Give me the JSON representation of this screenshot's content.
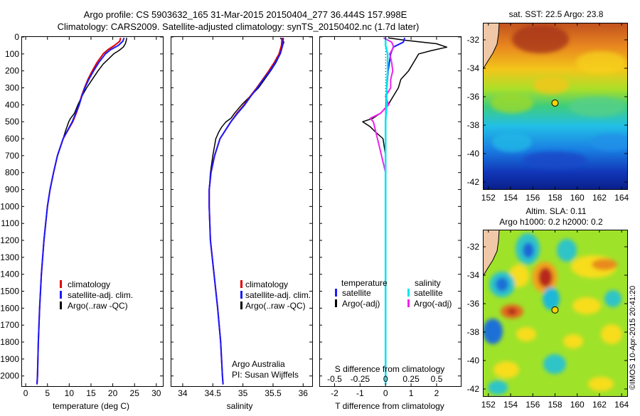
{
  "header": {
    "line1": "Argo profile: CS 5903632_165 31-Mar-2015 20150404_277 36.444S 157.998E",
    "line2": "Climatology: CARS2009. Satellite-adjusted climatology: synTS_20150402.nc (1.7d later)"
  },
  "footer": {
    "credit_line1": "Argo Australia",
    "credit_line2": "PI: Susan Wijffels",
    "watermark": "©IMOS 10-Apr-2015 20:41:20"
  },
  "colors": {
    "climatology": "#e00000",
    "satellite": "#1a1aff",
    "argo": "#000000",
    "satellite_s": "#00e5ee",
    "argo_s": "#ee22ee"
  },
  "depth_axis": {
    "ticks": [
      0,
      100,
      200,
      300,
      400,
      500,
      600,
      700,
      800,
      900,
      1000,
      1100,
      1200,
      1300,
      1400,
      1500,
      1600,
      1700,
      1800,
      1900,
      2000
    ],
    "ylim": [
      2060,
      0
    ]
  },
  "chart_data": [
    {
      "id": "temperature",
      "type": "line",
      "xlabel": "temperature (deg C)",
      "xlim": [
        -1,
        31.5
      ],
      "xticks": [
        0,
        5,
        10,
        15,
        20,
        25,
        30
      ],
      "xtick_labels": [
        "0",
        "5",
        "10",
        "15",
        "20",
        "25",
        "30"
      ],
      "legend": [
        "climatology",
        "satellite-adj. clim.",
        "Argo(..raw -QC)"
      ],
      "legend_placement": "lower-right",
      "series": [
        {
          "name": "climatology",
          "key": "climatology",
          "depth": [
            5,
            25,
            50,
            75,
            100,
            150,
            200,
            250,
            300,
            350,
            400,
            450,
            500,
            600,
            700,
            800,
            900,
            1000,
            1200,
            1400,
            1600,
            1800,
            2000,
            2050
          ],
          "values": [
            21.8,
            21.6,
            20.4,
            18.9,
            17.8,
            16.4,
            15.3,
            14.3,
            13.5,
            12.8,
            12.3,
            11.6,
            10.8,
            8.6,
            7.3,
            6.4,
            5.6,
            5.0,
            4.2,
            3.6,
            3.2,
            2.9,
            2.7,
            2.6
          ]
        },
        {
          "name": "satellite-adj. clim.",
          "key": "satellite",
          "depth": [
            5,
            25,
            50,
            75,
            100,
            150,
            200,
            250,
            300,
            350,
            400,
            450,
            500,
            600,
            700,
            800,
            900,
            1000,
            1200,
            1400,
            1600,
            1800,
            2000,
            2050
          ],
          "values": [
            22.6,
            22.3,
            21.3,
            19.5,
            18.3,
            16.8,
            15.6,
            14.5,
            13.6,
            12.9,
            12.3,
            11.5,
            10.7,
            8.6,
            7.3,
            6.4,
            5.6,
            5.0,
            4.2,
            3.6,
            3.2,
            2.9,
            2.7,
            2.6
          ]
        },
        {
          "name": "Argo(..raw -QC)",
          "key": "argo",
          "depth": [
            5,
            20,
            40,
            60,
            80,
            100,
            130,
            160,
            200,
            250,
            300,
            350,
            400,
            450,
            480,
            500,
            550,
            600,
            700,
            800,
            900,
            1000,
            1200,
            1400,
            1600,
            1800,
            2000,
            2050
          ],
          "values": [
            23.2,
            23.1,
            22.9,
            22.4,
            21.4,
            20.2,
            19.0,
            17.8,
            16.6,
            15.3,
            14.0,
            12.9,
            12.0,
            11.2,
            10.3,
            9.9,
            9.2,
            8.6,
            7.3,
            6.4,
            5.6,
            5.0,
            4.2,
            3.6,
            3.2,
            2.9,
            2.7,
            2.6
          ]
        }
      ]
    },
    {
      "id": "salinity",
      "type": "line",
      "xlabel": "salinity",
      "xlim": [
        33.8,
        36.15
      ],
      "xticks": [
        34,
        34.5,
        35,
        35.5,
        36
      ],
      "xtick_labels": [
        "34",
        "34.5",
        "35",
        "35.5",
        "36"
      ],
      "legend": [
        "climatology",
        "satellite-adj. clim.",
        "Argo(..raw -QC)"
      ],
      "legend_placement": "upper-right",
      "series": [
        {
          "name": "climatology",
          "key": "climatology",
          "depth": [
            5,
            50,
            100,
            150,
            200,
            250,
            300,
            350,
            400,
            450,
            500,
            600,
            700,
            800,
            900,
            1000,
            1200,
            1400,
            1600,
            1800,
            2000,
            2050
          ],
          "values": [
            35.65,
            35.64,
            35.6,
            35.52,
            35.43,
            35.33,
            35.23,
            35.12,
            35.02,
            34.9,
            34.8,
            34.62,
            34.53,
            34.47,
            34.44,
            34.44,
            34.46,
            34.52,
            34.58,
            34.63,
            34.66,
            34.67
          ]
        },
        {
          "name": "satellite-adj. clim.",
          "key": "satellite",
          "depth": [
            5,
            50,
            100,
            150,
            200,
            250,
            300,
            350,
            400,
            450,
            500,
            600,
            700,
            800,
            900,
            1000,
            1200,
            1400,
            1600,
            1800,
            2000,
            2050
          ],
          "values": [
            35.67,
            35.66,
            35.62,
            35.54,
            35.45,
            35.34,
            35.24,
            35.13,
            35.03,
            34.91,
            34.8,
            34.62,
            34.53,
            34.47,
            34.44,
            34.44,
            34.46,
            34.52,
            34.58,
            34.63,
            34.66,
            34.67
          ]
        },
        {
          "name": "Argo(..raw -QC)",
          "key": "argo",
          "depth": [
            5,
            30,
            60,
            100,
            150,
            200,
            250,
            300,
            350,
            400,
            450,
            480,
            500,
            530,
            560,
            600,
            700,
            800,
            900,
            1000,
            1200,
            1400,
            1600,
            1800,
            2000,
            2050
          ],
          "values": [
            35.62,
            35.68,
            35.65,
            35.62,
            35.55,
            35.46,
            35.36,
            35.26,
            35.12,
            34.98,
            34.86,
            34.8,
            34.72,
            34.65,
            34.6,
            34.55,
            34.5,
            34.46,
            34.44,
            34.44,
            34.46,
            34.52,
            34.58,
            34.63,
            34.66,
            34.67
          ]
        }
      ]
    },
    {
      "id": "difference",
      "type": "line",
      "xlabel": "T difference from climatology",
      "top_label": "S difference from climatology",
      "xlim": [
        -2.6,
        2.95
      ],
      "xticks": [
        -2,
        -1,
        0,
        1,
        2
      ],
      "xtick_labels": [
        "-2",
        "-1",
        "0",
        "1",
        "2"
      ],
      "s_ticks": [
        -0.5,
        -0.25,
        0,
        0.25,
        0.5
      ],
      "s_tick_labels": [
        "-0.5",
        "-0.25",
        "0",
        "0.25",
        "0.5"
      ],
      "s_scale_per_unit": 4,
      "legend_left_title": "temperature",
      "legend_right_title": "salinity",
      "legend_left": [
        "satellite",
        "Argo(-adj)"
      ],
      "legend_right": [
        "satellite",
        "Argo(-adj)"
      ],
      "series": [
        {
          "name": "satellite",
          "key": "satellite",
          "depth": [
            5,
            30,
            60,
            100,
            200,
            300,
            400,
            500,
            600,
            800,
            1000,
            1500,
            2050
          ],
          "values": [
            0.75,
            0.7,
            0.3,
            0.2,
            0.1,
            0.05,
            0.02,
            0,
            0,
            0,
            0,
            0,
            0
          ]
        },
        {
          "name": "Argo(-adj)",
          "key": "argo",
          "depth": [
            5,
            20,
            40,
            60,
            80,
            100,
            150,
            200,
            250,
            300,
            350,
            400,
            450,
            480,
            500,
            530,
            560,
            600,
            700,
            800,
            1000,
            1500,
            2050
          ],
          "values": [
            0.1,
            0.8,
            2.0,
            2.4,
            1.8,
            1.3,
            1.1,
            0.9,
            0.6,
            0.5,
            0.3,
            0.1,
            -0.2,
            -0.5,
            -0.9,
            -0.6,
            -0.4,
            -0.1,
            0,
            0,
            0,
            0,
            0
          ]
        },
        {
          "name": "satellite",
          "key": "satellite_s",
          "depth": [
            5,
            50,
            100,
            200,
            300,
            400,
            500,
            600,
            800,
            1000,
            2050
          ],
          "values": [
            0.0,
            0.0,
            0.02,
            0.02,
            0.01,
            0.01,
            0,
            0,
            0,
            0,
            0
          ]
        },
        {
          "name": "Argo(-adj)",
          "key": "argo_s",
          "depth": [
            5,
            30,
            60,
            100,
            150,
            200,
            250,
            300,
            350,
            400,
            450,
            480,
            500,
            550,
            600,
            700,
            800,
            1000,
            2050
          ],
          "values": [
            -0.02,
            0.06,
            0.08,
            0.04,
            0.06,
            0.07,
            0.05,
            0.05,
            0.0,
            0.03,
            -0.05,
            -0.15,
            -0.12,
            -0.1,
            -0.08,
            -0.04,
            0,
            0,
            0
          ]
        }
      ]
    },
    {
      "id": "sst_map",
      "type": "heatmap",
      "title": "sat. SST: 22.5 Argo: 23.8",
      "xticks": [
        152,
        154,
        156,
        158,
        160,
        162,
        164
      ],
      "yticks": [
        -32,
        -34,
        -36,
        -38,
        -40,
        -42
      ],
      "xlim": [
        151.5,
        164.5
      ],
      "ylim": [
        -42.5,
        -30.8
      ],
      "profile_lon": 157.998,
      "profile_lat": -36.444
    },
    {
      "id": "sla_map",
      "type": "heatmap",
      "title_line1": "Altim. SLA: 0.11",
      "title_line2": "Argo h1000: 0.2 h2000: 0.2",
      "xticks": [
        152,
        154,
        156,
        158,
        160,
        162,
        164
      ],
      "yticks": [
        -32,
        -34,
        -36,
        -38,
        -40,
        -42
      ],
      "xlim": [
        151.5,
        164.5
      ],
      "ylim": [
        -42.5,
        -30.8
      ],
      "profile_lon": 157.998,
      "profile_lat": -36.444
    }
  ]
}
